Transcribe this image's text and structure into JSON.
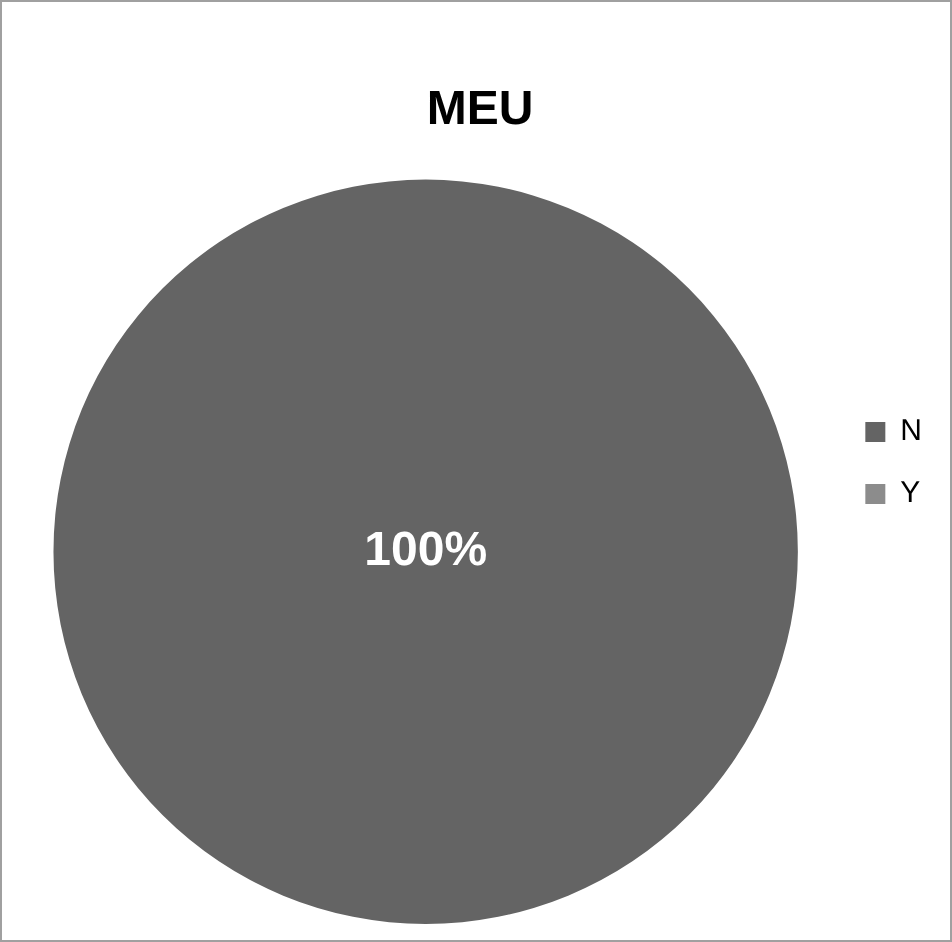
{
  "chart_data": {
    "type": "pie",
    "title": "MEU",
    "categories": [
      "N",
      "Y"
    ],
    "values": [
      100,
      0
    ],
    "colors": [
      "#646464",
      "#8c8c8c"
    ],
    "value_labels": [
      "100%",
      null
    ],
    "legend": "right"
  }
}
